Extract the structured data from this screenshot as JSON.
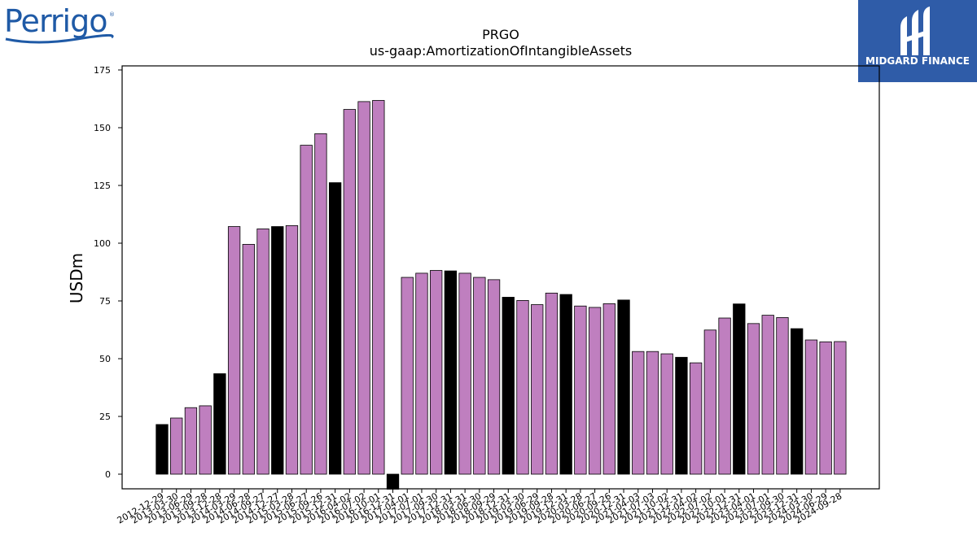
{
  "logos": {
    "left_brand": "Perrigo",
    "left_mark": "®",
    "right_brand": "MIDGARD FINANCE"
  },
  "colors": {
    "bar_default": "#bf7fbf",
    "bar_highlight": "#000000",
    "logo_blue": "#1f5aa6",
    "badge_blue": "#2f5ca8"
  },
  "chart_data": {
    "type": "bar",
    "title": "PRGO",
    "subtitle": "us-gaap:AmortizationOfIntangibleAssets",
    "xlabel": "",
    "ylabel": "USDm",
    "ylim": [
      -6.5,
      175
    ],
    "yticks": [
      0,
      25,
      50,
      75,
      100,
      125,
      150,
      175
    ],
    "grid": false,
    "categories": [
      "2012-12-29",
      "2013-03-30",
      "2013-06-29",
      "2013-09-28",
      "2013-12-28",
      "2014-03-29",
      "2014-06-28",
      "2014-09-27",
      "2014-12-27",
      "2015-03-28",
      "2015-06-27",
      "2015-09-26",
      "2015-12-31",
      "2016-04-02",
      "2016-07-02",
      "2016-10-01",
      "2016-12-31",
      "2017-04-01",
      "2017-07-01",
      "2017-09-30",
      "2017-12-31",
      "2018-03-31",
      "2018-06-30",
      "2018-09-29",
      "2018-12-31",
      "2019-03-30",
      "2019-06-29",
      "2019-09-28",
      "2019-12-31",
      "2020-03-28",
      "2020-06-27",
      "2020-09-26",
      "2020-12-31",
      "2021-04-03",
      "2021-07-03",
      "2021-10-02",
      "2021-12-31",
      "2022-04-02",
      "2022-07-02",
      "2022-10-01",
      "2022-12-31",
      "2023-04-01",
      "2023-07-01",
      "2023-09-30",
      "2023-12-31",
      "2024-03-30",
      "2024-06-29",
      "2024-09-28"
    ],
    "values": [
      21.5,
      24.3,
      28.8,
      29.6,
      43.5,
      107.2,
      99.5,
      106.2,
      107.2,
      107.6,
      142.4,
      147.4,
      126.2,
      157.9,
      161.3,
      161.8,
      -6.5,
      85.2,
      87.0,
      88.2,
      88.0,
      87.0,
      85.2,
      84.2,
      76.6,
      75.2,
      73.4,
      78.4,
      77.8,
      72.8,
      72.2,
      73.8,
      75.4,
      53.1,
      53.1,
      52.1,
      50.6,
      48.2,
      62.4,
      67.6,
      73.7,
      65.2,
      68.8,
      67.8,
      63.0,
      58.1,
      57.3,
      57.4
    ],
    "highlight": [
      true,
      false,
      false,
      false,
      true,
      false,
      false,
      false,
      true,
      false,
      false,
      false,
      true,
      false,
      false,
      false,
      true,
      false,
      false,
      false,
      true,
      false,
      false,
      false,
      true,
      false,
      false,
      false,
      true,
      false,
      false,
      false,
      true,
      false,
      false,
      false,
      true,
      false,
      false,
      false,
      true,
      false,
      false,
      false,
      true,
      false,
      false,
      false
    ]
  }
}
